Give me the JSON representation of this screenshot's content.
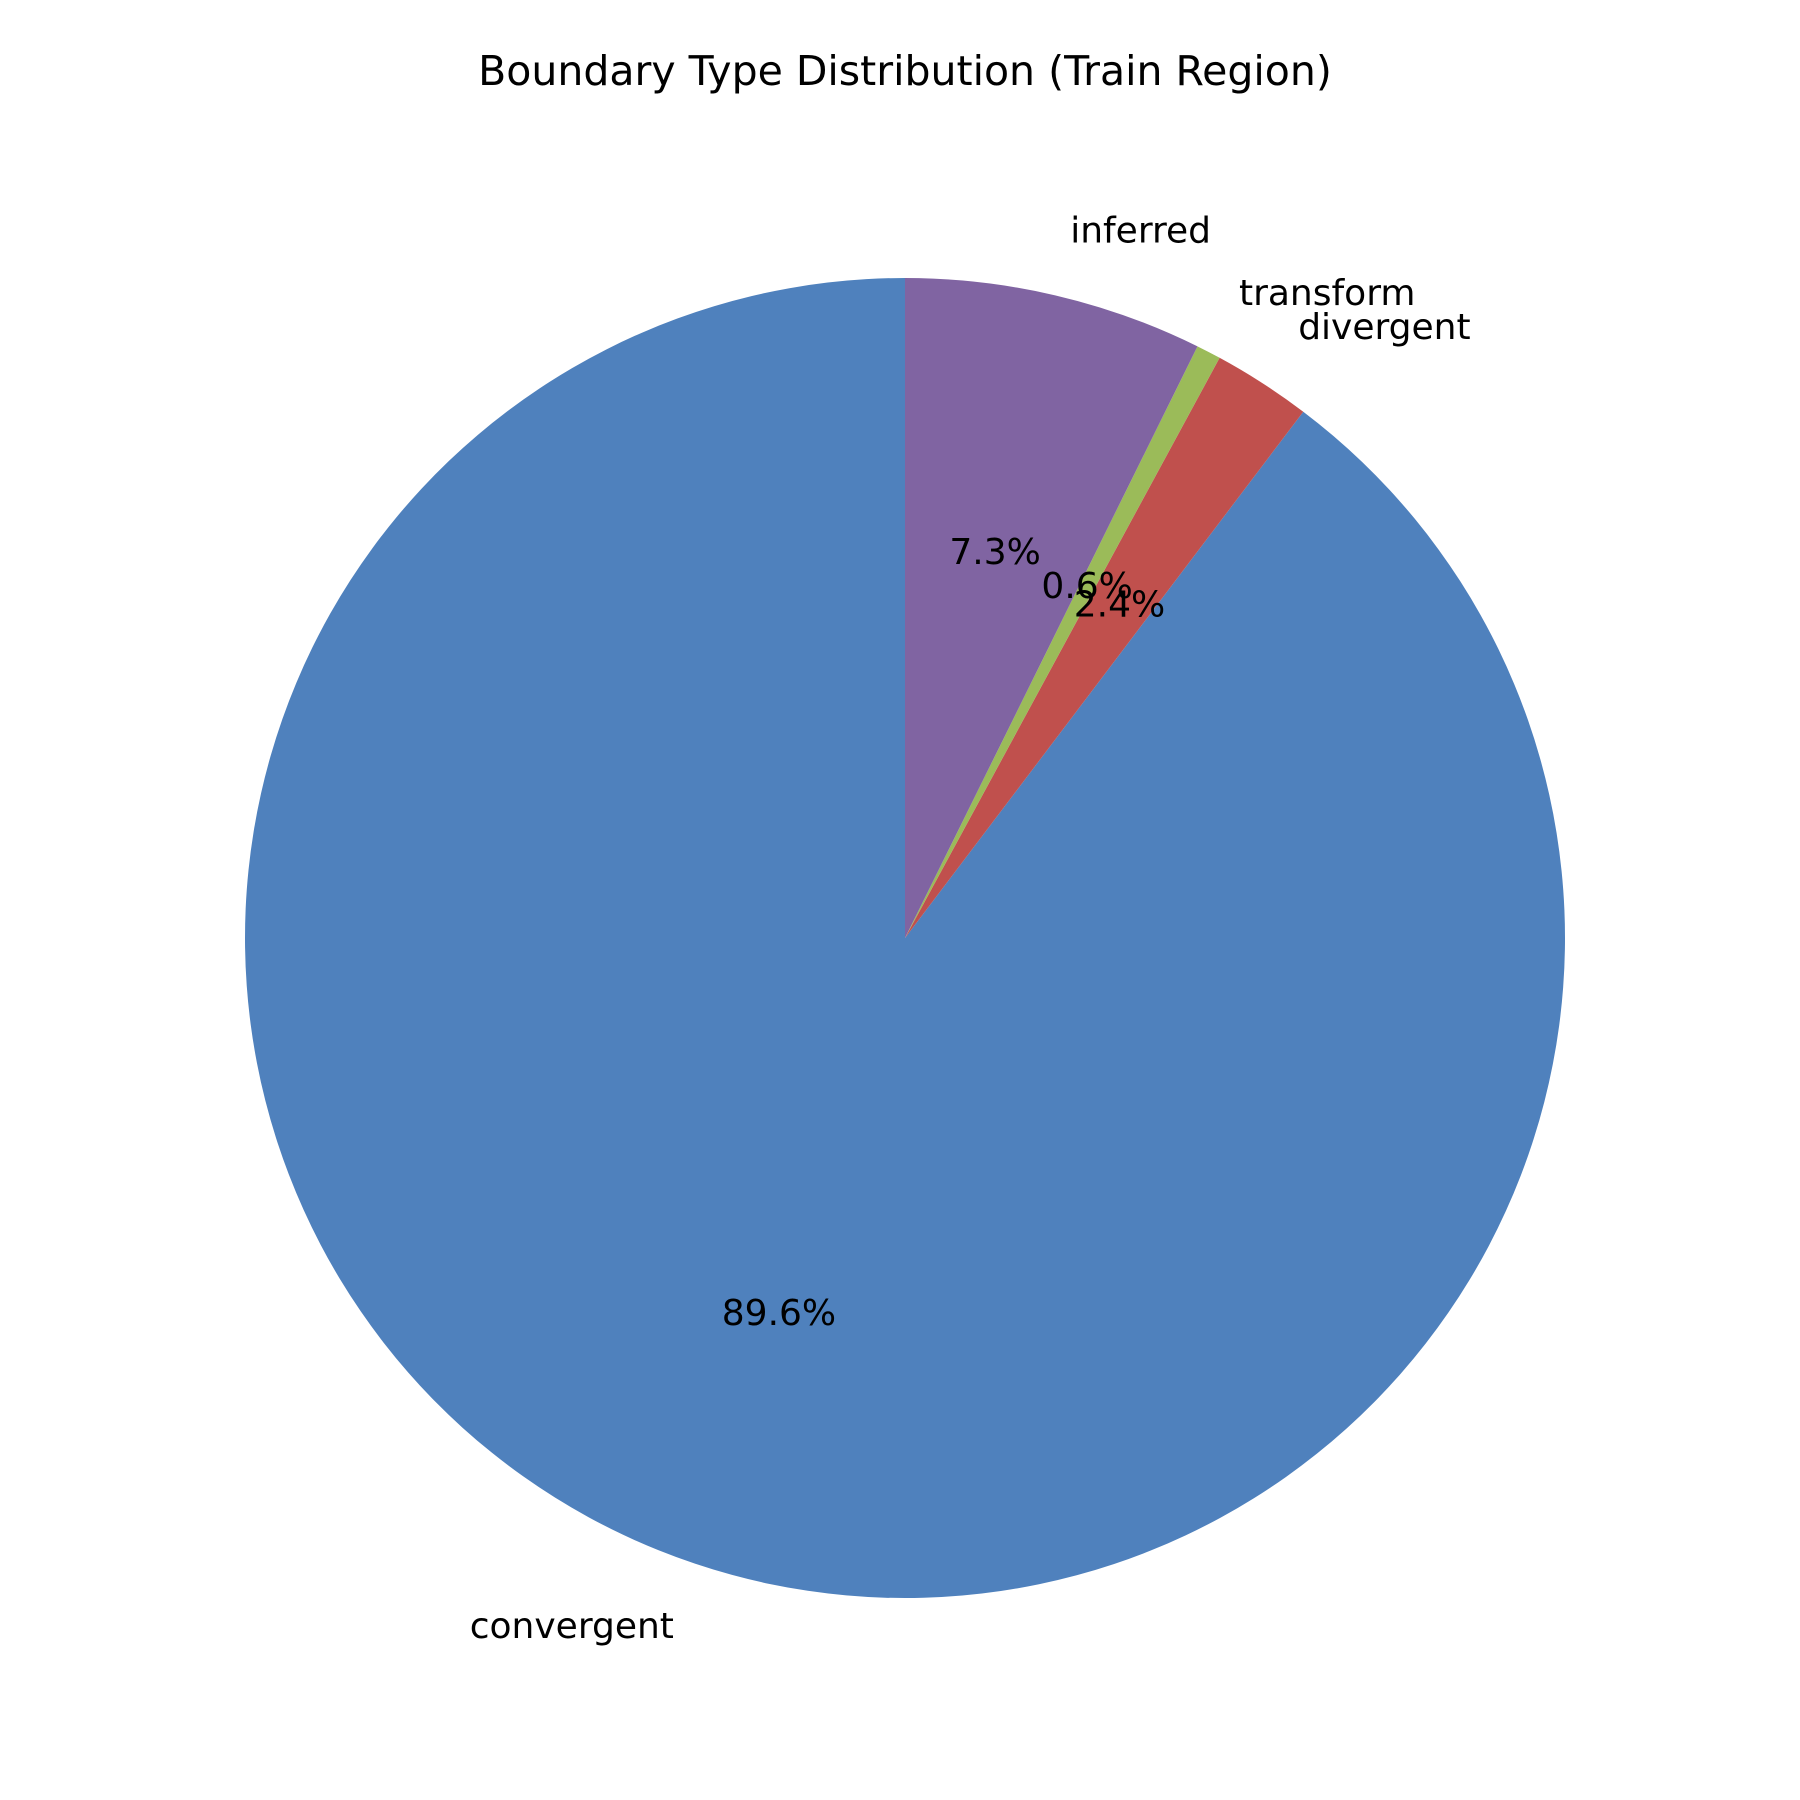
{
  "chart_data": {
    "type": "pie",
    "title": "Boundary Type Distribution (Train Region)",
    "categories": [
      "convergent",
      "divergent",
      "transform",
      "inferred"
    ],
    "values": [
      89.6,
      2.4,
      0.6,
      7.3
    ],
    "percent_labels": [
      "89.6%",
      "2.4%",
      "0.6%",
      "7.3%"
    ],
    "colors": [
      "#4f81bd",
      "#c0504d",
      "#9bbb59",
      "#8064a2"
    ],
    "start_angle_deg": 90,
    "direction": "counterclockwise"
  }
}
